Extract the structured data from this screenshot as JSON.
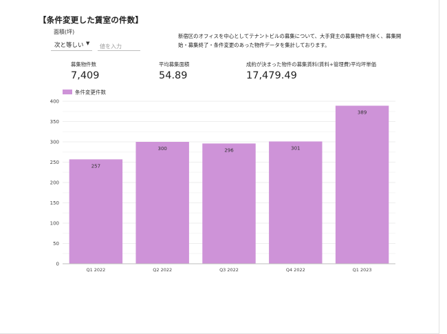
{
  "page_title": "【条件変更した賃室の件数】",
  "filter": {
    "label": "面積(坪)",
    "operator": "次と等しい",
    "placeholder": "値を入力"
  },
  "description": "新宿区のオフィスを中心としてテナントビルの募集について、大手貸主の募集物件を除く、募集開始・募集終了・条件変更のあった物件データを集計しております。",
  "kpis": [
    {
      "label": "募集物件数",
      "value": "7,409"
    },
    {
      "label": "平均募集面積",
      "value": "54.89"
    },
    {
      "label": "成約が決まった物件の募集賃料(賃料+管理費)平均坪単価",
      "value": "17,479.49"
    }
  ],
  "colors": {
    "bar": "#ce93d8",
    "grid": "#eeeeee",
    "axis": "#bdbdbd"
  },
  "chart_data": {
    "type": "bar",
    "categories": [
      "Q1 2022",
      "Q2 2022",
      "Q3 2022",
      "Q4 2022",
      "Q1 2023"
    ],
    "series": [
      {
        "name": "条件変更件数",
        "values": [
          257,
          300,
          296,
          301,
          389
        ]
      }
    ],
    "data_labels": [
      "257",
      "300",
      "296",
      "301",
      "389"
    ],
    "yticks": [
      0,
      50,
      100,
      150,
      200,
      250,
      300,
      350,
      400
    ],
    "ylim": [
      0,
      400
    ],
    "xlabel": "",
    "ylabel": "",
    "legend": "top-left",
    "grid": true
  }
}
